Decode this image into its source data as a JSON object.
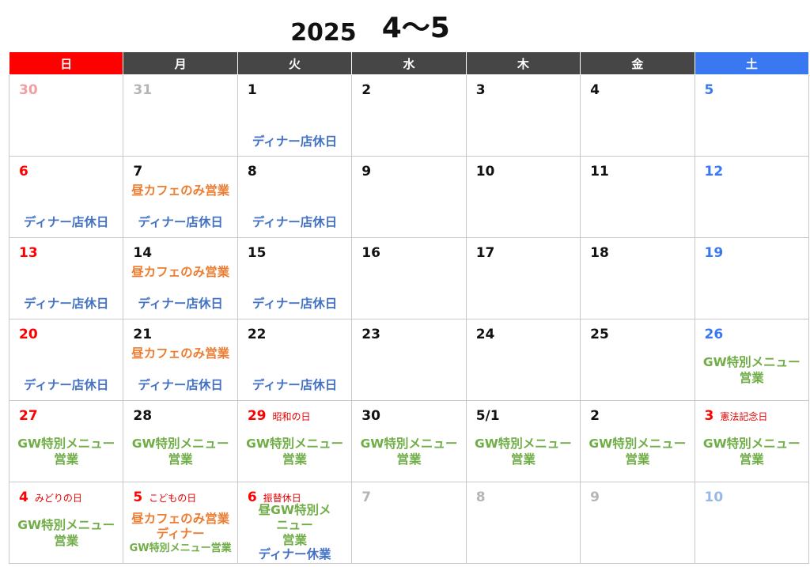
{
  "title": {
    "year": "2025",
    "range": "4〜5"
  },
  "weekdays": [
    "日",
    "月",
    "火",
    "水",
    "木",
    "金",
    "土"
  ],
  "colors": {
    "sunday": "#ff0000",
    "saturday": "#3a78f2",
    "header": "#464646",
    "cafe": "#ed7d31",
    "closed": "#4472c4",
    "gw": "#70ad47"
  },
  "labels": {
    "dinner_closed": "ディナー店休日",
    "cafe_only": "昼カフェのみ営業",
    "gw_menu": "GW特別メニュー",
    "business": "営業",
    "dinner": "ディナー",
    "gw_menu_business": "GW特別メニュー営業",
    "lunch_gw_menu": "昼GW特別メ",
    "nyu": "ニュー",
    "dinner_off": "ディナー休業"
  },
  "weeks": [
    [
      "30",
      "31",
      "1",
      "2",
      "3",
      "4",
      "5"
    ],
    [
      "6",
      "7",
      "8",
      "9",
      "10",
      "11",
      "12"
    ],
    [
      "13",
      "14",
      "15",
      "16",
      "17",
      "18",
      "19"
    ],
    [
      "20",
      "21",
      "22",
      "23",
      "24",
      "25",
      "26"
    ],
    [
      "27",
      "28",
      "29",
      "30",
      "5/1",
      "2",
      "3"
    ],
    [
      "4",
      "5",
      "6",
      "7",
      "8",
      "9",
      "10"
    ]
  ],
  "holidays": {
    "showa": "昭和の日",
    "kenpo": "憲法記念日",
    "midori": "みどりの日",
    "kodomo": "こどもの日",
    "furikae": "振替休日"
  }
}
